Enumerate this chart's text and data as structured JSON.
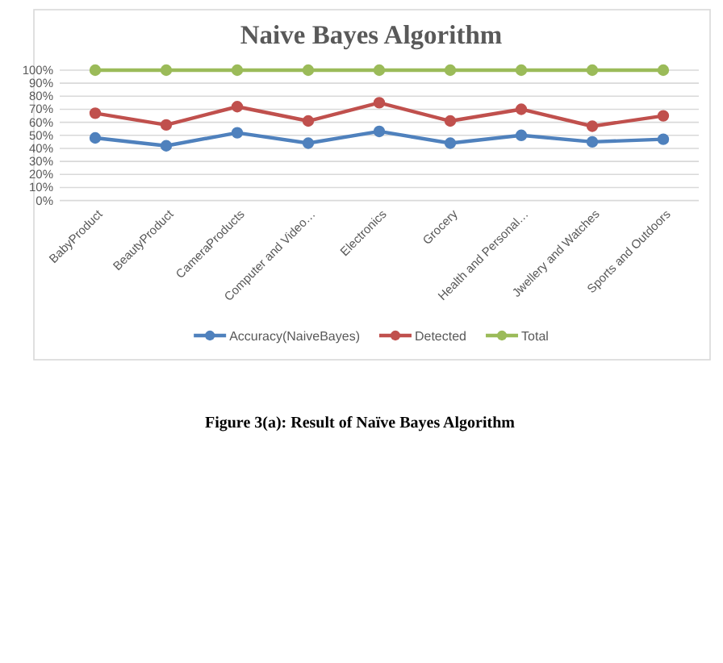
{
  "chart_data": {
    "type": "line",
    "title": "Naive Bayes Algorithm",
    "categories": [
      "BabyProduct",
      "BeautyProduct",
      "CameraProducts",
      "Computer and Video…",
      "Electronics",
      "Grocery",
      "Health and Personal…",
      "Jwellery and Watches",
      "Sports and Outdoors"
    ],
    "series": [
      {
        "name": "Accuracy(NaiveBayes)",
        "color": "#4f81bd",
        "values": [
          48,
          42,
          52,
          44,
          53,
          44,
          50,
          45,
          47
        ]
      },
      {
        "name": "Detected",
        "color": "#c0504d",
        "values": [
          67,
          58,
          72,
          61,
          75,
          61,
          70,
          57,
          65
        ]
      },
      {
        "name": "Total",
        "color": "#9bbb59",
        "values": [
          100,
          100,
          100,
          100,
          100,
          100,
          100,
          100,
          100
        ]
      }
    ],
    "ylim": [
      0,
      100
    ],
    "yticks": [
      {
        "value": 0,
        "label": "0%"
      },
      {
        "value": 10,
        "label": "10%"
      },
      {
        "value": 20,
        "label": "20%"
      },
      {
        "value": 30,
        "label": "30%"
      },
      {
        "value": 40,
        "label": "40%"
      },
      {
        "value": 50,
        "label": "50%"
      },
      {
        "value": 60,
        "label": "60%"
      },
      {
        "value": 70,
        "label": "70%"
      },
      {
        "value": 80,
        "label": "80%"
      },
      {
        "value": 90,
        "label": "90%"
      },
      {
        "value": 100,
        "label": "100%"
      }
    ],
    "grid": "y",
    "legend": "bottom",
    "marker": "circle",
    "line_style": "solid",
    "annotations": [
      "Figure 3(a): Result of Naïve Bayes Algorithm"
    ]
  }
}
